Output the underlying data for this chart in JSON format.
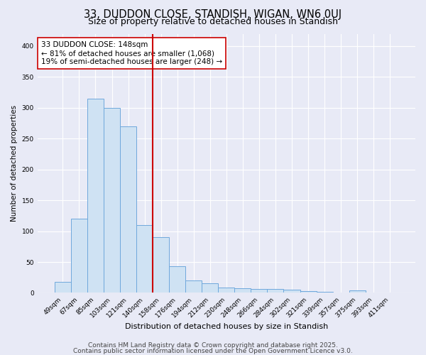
{
  "title": "33, DUDDON CLOSE, STANDISH, WIGAN, WN6 0UJ",
  "subtitle": "Size of property relative to detached houses in Standish",
  "xlabel": "Distribution of detached houses by size in Standish",
  "ylabel": "Number of detached properties",
  "bin_labels": [
    "49sqm",
    "67sqm",
    "85sqm",
    "103sqm",
    "121sqm",
    "140sqm",
    "158sqm",
    "176sqm",
    "194sqm",
    "212sqm",
    "230sqm",
    "248sqm",
    "266sqm",
    "284sqm",
    "302sqm",
    "321sqm",
    "339sqm",
    "357sqm",
    "375sqm",
    "393sqm",
    "411sqm"
  ],
  "bar_values": [
    18,
    120,
    315,
    300,
    270,
    110,
    90,
    43,
    20,
    15,
    9,
    7,
    6,
    6,
    5,
    3,
    2,
    1,
    4,
    1,
    1
  ],
  "bar_color": "#cfe2f3",
  "bar_edge_color": "#6fa8dc",
  "vline_x": 6.0,
  "vline_color": "#cc0000",
  "annotation_line1": "33 DUDDON CLOSE: 148sqm",
  "annotation_line2": "← 81% of detached houses are smaller (1,068)",
  "annotation_line3": "19% of semi-detached houses are larger (248) →",
  "annotation_box_color": "#ffffff",
  "annotation_box_edge_color": "#cc0000",
  "annotation_fontsize": 7.5,
  "ylim": [
    0,
    420
  ],
  "yticks": [
    0,
    50,
    100,
    150,
    200,
    250,
    300,
    350,
    400
  ],
  "background_color": "#e8eaf6",
  "plot_bg_color": "#e8eaf6",
  "grid_color": "#ffffff",
  "title_fontsize": 10.5,
  "subtitle_fontsize": 9,
  "footer_line1": "Contains HM Land Registry data © Crown copyright and database right 2025.",
  "footer_line2": "Contains public sector information licensed under the Open Government Licence v3.0.",
  "footer_fontsize": 6.5
}
